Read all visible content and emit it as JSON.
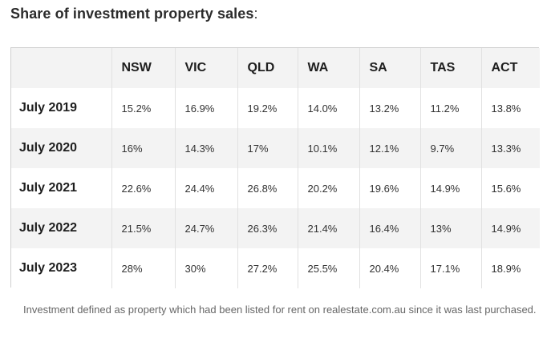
{
  "title": {
    "main": "Share of investment property sales",
    "colon": ":"
  },
  "table": {
    "columns": [
      "",
      "NSW",
      "VIC",
      "QLD",
      "WA",
      "SA",
      "TAS",
      "ACT"
    ],
    "rows": [
      {
        "label": "July 2019",
        "values": [
          "15.2%",
          "16.9%",
          "19.2%",
          "14.0%",
          "13.2%",
          "11.2%",
          "13.8%"
        ]
      },
      {
        "label": "July 2020",
        "values": [
          "16%",
          "14.3%",
          "17%",
          "10.1%",
          "12.1%",
          "9.7%",
          "13.3%"
        ]
      },
      {
        "label": "July 2021",
        "values": [
          "22.6%",
          "24.4%",
          "26.8%",
          "20.2%",
          "19.6%",
          "14.9%",
          "15.6%"
        ]
      },
      {
        "label": "July 2022",
        "values": [
          "21.5%",
          "24.7%",
          "26.3%",
          "21.4%",
          "16.4%",
          "13%",
          "14.9%"
        ]
      },
      {
        "label": "July 2023",
        "values": [
          "28%",
          "30%",
          "27.2%",
          "25.5%",
          "20.4%",
          "17.1%",
          "18.9%"
        ]
      }
    ]
  },
  "footnote": "Investment defined as property which had been listed for rent on realestate.com.au since it was last purchased.",
  "colors": {
    "header_bg": "#f3f3f3",
    "stripe_bg": "#f3f3f3",
    "border": "#cfcfcf",
    "footnote_text": "#666666"
  }
}
